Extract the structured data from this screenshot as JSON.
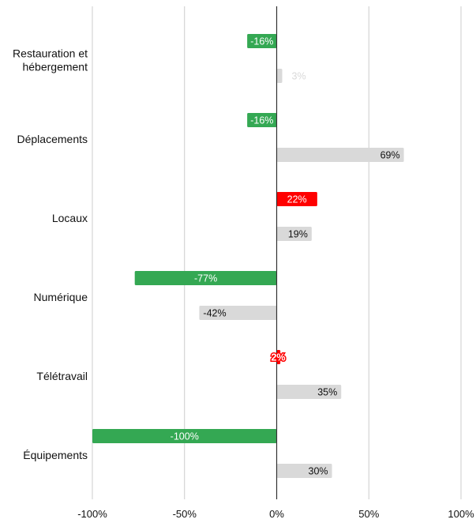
{
  "chart_data": {
    "type": "bar",
    "orientation": "horizontal",
    "categories": [
      [
        "Restauration et",
        "hébergement"
      ],
      [
        "Déplacements"
      ],
      [
        "Locaux"
      ],
      [
        "Numérique"
      ],
      [
        "Télétravail"
      ],
      [
        "Équipements"
      ]
    ],
    "series": [
      {
        "values": [
          -16,
          -16,
          22,
          -77,
          2,
          -100
        ],
        "labels": [
          "-16%",
          "-16%",
          "22%",
          "-77%",
          "2%",
          "-100%"
        ],
        "colors": [
          "#34a853",
          "#34a853",
          "#ff0000",
          "#34a853",
          "#ff0000",
          "#34a853"
        ],
        "label_colors": [
          "#ffffff",
          "#ffffff",
          "#ffffff",
          "#ffffff",
          "#ffffff",
          "#ffffff"
        ]
      },
      {
        "values": [
          3,
          69,
          19,
          -42,
          35,
          30
        ],
        "labels": [
          "3%",
          "69%",
          "19%",
          "-42%",
          "35%",
          "30%"
        ],
        "colors": [
          "#d9d9d9",
          "#d9d9d9",
          "#d9d9d9",
          "#d9d9d9",
          "#d9d9d9",
          "#d9d9d9"
        ],
        "label_colors": [
          "#d9d9d9",
          "#111111",
          "#111111",
          "#111111",
          "#111111",
          "#111111"
        ]
      }
    ],
    "xlim": [
      -100,
      100
    ],
    "xticks": [
      -100,
      -50,
      0,
      50,
      100
    ],
    "xtick_labels": [
      "-100%",
      "-50%",
      "0%",
      "50%",
      "100%"
    ],
    "grid": true,
    "legend": "none"
  }
}
